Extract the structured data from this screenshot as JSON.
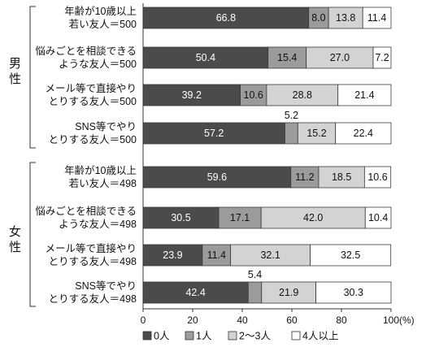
{
  "chart_data": {
    "type": "bar",
    "orientation": "horizontal",
    "stacked": true,
    "xlim": [
      0,
      100
    ],
    "xticks": [
      0,
      20,
      40,
      60,
      80,
      100
    ],
    "xunit": "(%)",
    "grid": false,
    "legend_position": "bottom",
    "groups": [
      {
        "name": "男性"
      },
      {
        "name": "女性"
      }
    ],
    "categories": [
      {
        "group": 0,
        "lines": [
          "年齢が10歳以上",
          "若い友人＝500"
        ]
      },
      {
        "group": 0,
        "lines": [
          "悩みごとを相談できる",
          "ような友人＝500"
        ]
      },
      {
        "group": 0,
        "lines": [
          "メール等で直接やり",
          "とりする友人＝500"
        ]
      },
      {
        "group": 0,
        "lines": [
          "SNS等でやり",
          "とりする友人＝500"
        ]
      },
      {
        "group": 1,
        "lines": [
          "年齢が10歳以上",
          "若い友人＝498"
        ]
      },
      {
        "group": 1,
        "lines": [
          "悩みごとを相談できる",
          "ような友人＝498"
        ]
      },
      {
        "group": 1,
        "lines": [
          "メール等で直接やり",
          "とりする友人＝498"
        ]
      },
      {
        "group": 1,
        "lines": [
          "SNS等でやり",
          "とりする友人＝498"
        ]
      }
    ],
    "series": [
      {
        "name": "0人",
        "color": "#4b4b4b",
        "values": [
          66.8,
          50.4,
          39.2,
          57.2,
          59.6,
          30.5,
          23.9,
          42.4
        ]
      },
      {
        "name": "1人",
        "color": "#9b9b9b",
        "values": [
          8.0,
          15.4,
          10.6,
          5.2,
          11.2,
          17.1,
          11.4,
          5.4
        ]
      },
      {
        "name": "2～3人",
        "color": "#d3d3d3",
        "values": [
          13.8,
          27.0,
          28.8,
          15.2,
          18.5,
          42.0,
          32.1,
          21.9
        ]
      },
      {
        "name": "4人以上",
        "color": "#ffffff",
        "values": [
          11.4,
          7.2,
          21.4,
          22.4,
          10.6,
          10.4,
          32.5,
          30.3
        ]
      }
    ]
  }
}
